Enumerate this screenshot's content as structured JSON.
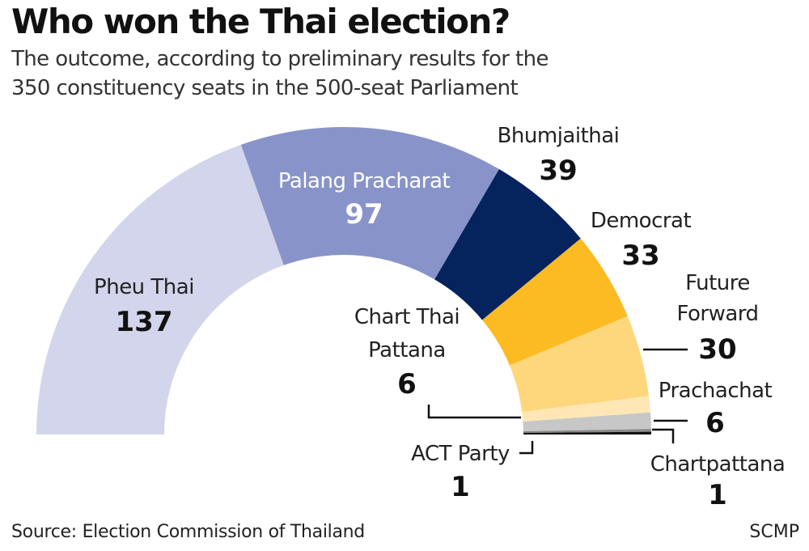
{
  "title": "Who won the Thai election?",
  "subtitle_line1": "The outcome, according to preliminary results for the",
  "subtitle_line2": "350 constituency seats in the 500-seat Parliament",
  "source": "Source: Election Commission of Thailand",
  "credit": "SCMP",
  "chart_data": {
    "type": "pie",
    "shape": "semicircle",
    "total_seats": 350,
    "slices": [
      {
        "party": "Pheu Thai",
        "seats": 137,
        "color": "#d2d5eb"
      },
      {
        "party": "Palang Pracharat",
        "seats": 97,
        "color": "#8894c9"
      },
      {
        "party": "Bhumjaithai",
        "seats": 39,
        "color": "#05235d"
      },
      {
        "party": "Democrat",
        "seats": 33,
        "color": "#fcbb22"
      },
      {
        "party": "Future Forward",
        "seats": 30,
        "color": "#fed67c"
      },
      {
        "party": "Chart Thai Pattana",
        "seats": 6,
        "color": "#fee7b4"
      },
      {
        "party": "Prachachat",
        "seats": 6,
        "color": "#c7c7c7"
      },
      {
        "party": "Chartpattana",
        "seats": 1,
        "color": "#8a8a8a"
      },
      {
        "party": "ACT Party",
        "seats": 1,
        "color": "#111111"
      }
    ],
    "labels": {
      "pheu_thai": {
        "name": "Pheu Thai",
        "value": "137"
      },
      "palang": {
        "name": "Palang Pracharat",
        "value": "97"
      },
      "bhumjaithai": {
        "name": "Bhumjaithai",
        "value": "39"
      },
      "democrat": {
        "name": "Democrat",
        "value": "33"
      },
      "future_forward": {
        "name_line1": "Future",
        "name_line2": "Forward",
        "value": "30"
      },
      "chart_thai": {
        "name_line1": "Chart Thai",
        "name_line2": "Pattana",
        "value": "6"
      },
      "prachachat": {
        "name": "Prachachat",
        "value": "6"
      },
      "act": {
        "name": "ACT Party",
        "value": "1"
      },
      "chartpattana": {
        "name": "Chartpattana",
        "value": "1"
      }
    }
  }
}
